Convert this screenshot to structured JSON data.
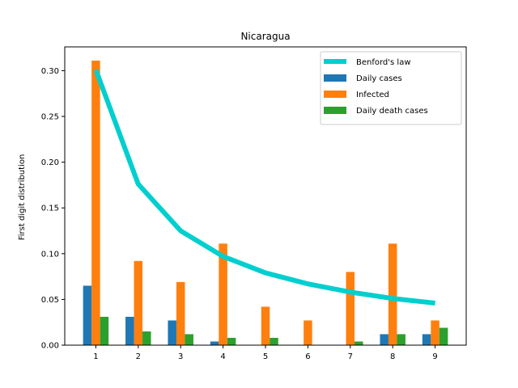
{
  "chart_data": {
    "type": "bar",
    "title": "Nicaragua",
    "xlabel": "",
    "ylabel": "First digit distribution",
    "categories": [
      "1",
      "2",
      "3",
      "4",
      "5",
      "6",
      "7",
      "8",
      "9"
    ],
    "ylim": [
      0,
      0.326
    ],
    "yticks": [
      "0.00",
      "0.05",
      "0.10",
      "0.15",
      "0.20",
      "0.25",
      "0.30"
    ],
    "series": [
      {
        "name": "Daily cases",
        "kind": "bar",
        "color": "#1f77b4",
        "values": [
          0.065,
          0.031,
          0.027,
          0.004,
          0.0,
          0.0,
          0.0,
          0.012,
          0.012
        ]
      },
      {
        "name": "Infected",
        "kind": "bar",
        "color": "#ff7f0e",
        "values": [
          0.311,
          0.092,
          0.069,
          0.111,
          0.042,
          0.027,
          0.08,
          0.111,
          0.027
        ]
      },
      {
        "name": "Daily death cases",
        "kind": "bar",
        "color": "#2ca02c",
        "values": [
          0.031,
          0.015,
          0.012,
          0.008,
          0.008,
          0.0,
          0.004,
          0.012,
          0.019
        ]
      },
      {
        "name": "Benford's law",
        "kind": "line",
        "color": "#00cfcf",
        "values": [
          0.301,
          0.176,
          0.125,
          0.097,
          0.079,
          0.067,
          0.058,
          0.051,
          0.046
        ]
      }
    ],
    "legend_position": "top-right",
    "legend_order": [
      "Benford's law",
      "Daily cases",
      "Infected",
      "Daily death cases"
    ],
    "grid": false
  }
}
